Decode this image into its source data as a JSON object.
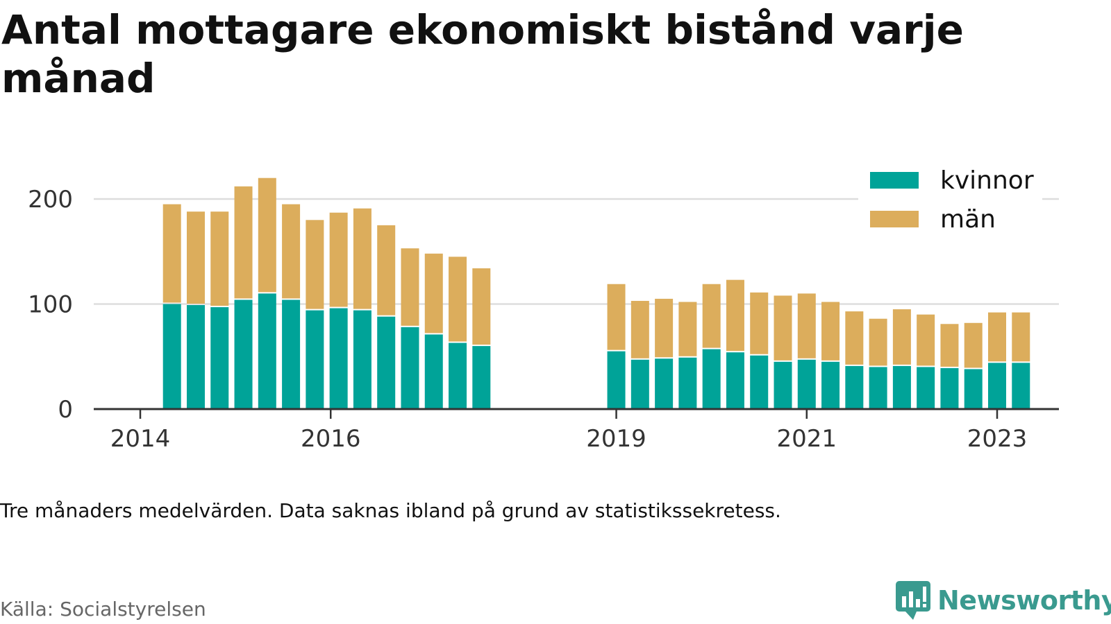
{
  "title": "Antal mottagare ekonomiskt bistånd varje månad",
  "note": "Tre månaders medelvärden. Data saknas ibland på grund av statistikssekretess.",
  "source": "Källa: Socialstyrelsen",
  "brand": "Newsworthy",
  "colors": {
    "kvinnor": "#00a398",
    "man": "#dcad5c",
    "grid": "#dddddd",
    "axis": "#333333",
    "brand": "#3a9a8f"
  },
  "chart_data": {
    "type": "bar",
    "stacked": true,
    "ylim": [
      0,
      230
    ],
    "yticks": [
      0,
      100,
      200
    ],
    "xticks": [
      {
        "label": "2014",
        "date": "2014-01"
      },
      {
        "label": "2016",
        "date": "2016-01"
      },
      {
        "label": "2019",
        "date": "2019-01"
      },
      {
        "label": "2021",
        "date": "2021-01"
      },
      {
        "label": "2023",
        "date": "2023-01"
      }
    ],
    "grid": true,
    "legend_position": "top-right",
    "categories": [
      "2014-05",
      "2014-08",
      "2014-11",
      "2015-02",
      "2015-05",
      "2015-08",
      "2015-11",
      "2016-02",
      "2016-05",
      "2016-08",
      "2016-11",
      "2017-02",
      "2017-05",
      "2017-08",
      "2019-01",
      "2019-04",
      "2019-07",
      "2019-10",
      "2020-01",
      "2020-04",
      "2020-07",
      "2020-10",
      "2021-01",
      "2021-04",
      "2021-07",
      "2021-10",
      "2022-01",
      "2022-04",
      "2022-07",
      "2022-10",
      "2023-01",
      "2023-04"
    ],
    "series": [
      {
        "name": "kvinnor",
        "values": [
          100,
          99,
          97,
          104,
          110,
          104,
          94,
          96,
          94,
          88,
          78,
          71,
          63,
          60,
          55,
          47,
          48,
          49,
          57,
          54,
          51,
          45,
          47,
          45,
          41,
          40,
          41,
          40,
          39,
          38,
          44,
          44
        ]
      },
      {
        "name": "män",
        "values": [
          95,
          89,
          91,
          108,
          110,
          91,
          86,
          91,
          97,
          87,
          75,
          77,
          82,
          74,
          64,
          56,
          57,
          53,
          62,
          69,
          60,
          63,
          63,
          57,
          52,
          46,
          54,
          50,
          42,
          44,
          48,
          48
        ]
      }
    ]
  }
}
